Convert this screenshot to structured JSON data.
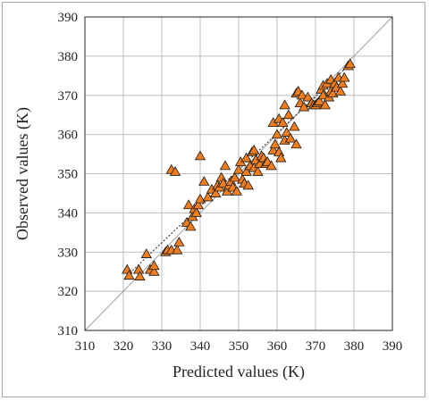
{
  "chart_data": {
    "type": "scatter",
    "title": "",
    "xlabel": "Predicted values (K)",
    "ylabel": "Observed values (K)",
    "xlim": [
      310,
      390
    ],
    "ylim": [
      310,
      390
    ],
    "xticks": [
      310,
      320,
      330,
      340,
      350,
      360,
      370,
      380,
      390
    ],
    "yticks": [
      310,
      320,
      330,
      340,
      350,
      360,
      370,
      380,
      390
    ],
    "grid": true,
    "legend": "none",
    "marker": {
      "shape": "triangle",
      "fill": "#F07D1E",
      "stroke": "#1a1a1a"
    },
    "reference_lines": [
      {
        "kind": "identity",
        "style": "solid",
        "color": "#a0a0a0"
      },
      {
        "kind": "trend",
        "style": "dotted",
        "color": "#222222",
        "from": [
          321,
          324
        ],
        "to": [
          379,
          378
        ]
      }
    ],
    "points": [
      [
        321,
        325.5
      ],
      [
        321.5,
        324
      ],
      [
        324,
        325.5
      ],
      [
        324.3,
        323.8
      ],
      [
        326,
        329.5
      ],
      [
        327,
        325.5
      ],
      [
        328,
        325
      ],
      [
        328,
        326.5
      ],
      [
        331,
        330
      ],
      [
        331.5,
        330.5
      ],
      [
        332.5,
        330.5
      ],
      [
        332.5,
        351
      ],
      [
        333.5,
        350.5
      ],
      [
        334,
        330.5
      ],
      [
        334.5,
        332.5
      ],
      [
        336.5,
        337.5
      ],
      [
        337,
        342
      ],
      [
        337.5,
        336.5
      ],
      [
        338,
        339
      ],
      [
        338.5,
        341
      ],
      [
        339,
        340
      ],
      [
        339.5,
        342
      ],
      [
        340,
        343.5
      ],
      [
        340,
        354.5
      ],
      [
        341,
        348
      ],
      [
        342,
        344
      ],
      [
        343,
        346
      ],
      [
        344,
        345
      ],
      [
        344.5,
        347
      ],
      [
        345,
        346.5
      ],
      [
        345.5,
        349
      ],
      [
        346,
        347.5
      ],
      [
        346.5,
        352
      ],
      [
        347,
        345.5
      ],
      [
        347.5,
        347
      ],
      [
        348,
        348
      ],
      [
        348.5,
        346.5
      ],
      [
        349,
        349
      ],
      [
        349.5,
        345.5
      ],
      [
        350,
        351
      ],
      [
        350.5,
        353
      ],
      [
        351,
        348.5
      ],
      [
        351.5,
        347.5
      ],
      [
        352,
        350.5
      ],
      [
        352,
        354
      ],
      [
        352.5,
        347
      ],
      [
        353,
        352
      ],
      [
        353.5,
        355.5
      ],
      [
        354,
        351.5
      ],
      [
        354,
        356
      ],
      [
        354.5,
        353.5
      ],
      [
        355,
        350.5
      ],
      [
        355.5,
        352.5
      ],
      [
        356,
        354.5
      ],
      [
        356.5,
        354
      ],
      [
        357,
        352.5
      ],
      [
        357.5,
        353
      ],
      [
        358.5,
        352
      ],
      [
        359,
        356
      ],
      [
        359,
        363
      ],
      [
        359.5,
        357.5
      ],
      [
        360,
        360
      ],
      [
        360.5,
        355.5
      ],
      [
        360.5,
        364
      ],
      [
        361,
        354
      ],
      [
        361.5,
        363
      ],
      [
        362,
        367.5
      ],
      [
        362,
        358.5
      ],
      [
        362.5,
        360.5
      ],
      [
        363,
        365
      ],
      [
        363.5,
        359
      ],
      [
        364.5,
        362
      ],
      [
        365,
        370.5
      ],
      [
        365,
        357.5
      ],
      [
        365.5,
        371
      ],
      [
        366,
        368
      ],
      [
        366.5,
        370
      ],
      [
        367,
        367
      ],
      [
        368,
        369.5
      ],
      [
        369,
        368
      ],
      [
        369.5,
        367.5
      ],
      [
        370,
        367.5
      ],
      [
        370.5,
        368
      ],
      [
        371,
        368.5
      ],
      [
        371.5,
        371.5
      ],
      [
        372,
        370
      ],
      [
        372,
        372.5
      ],
      [
        372.5,
        367.5
      ],
      [
        373,
        373
      ],
      [
        373.5,
        369.5
      ],
      [
        374,
        371
      ],
      [
        374,
        374
      ],
      [
        374.5,
        370.5
      ],
      [
        375,
        373
      ],
      [
        375.5,
        372
      ],
      [
        376,
        374.5
      ],
      [
        376.5,
        371
      ],
      [
        377,
        373
      ],
      [
        377.5,
        374.5
      ],
      [
        378.5,
        377.5
      ],
      [
        379,
        378
      ]
    ]
  }
}
